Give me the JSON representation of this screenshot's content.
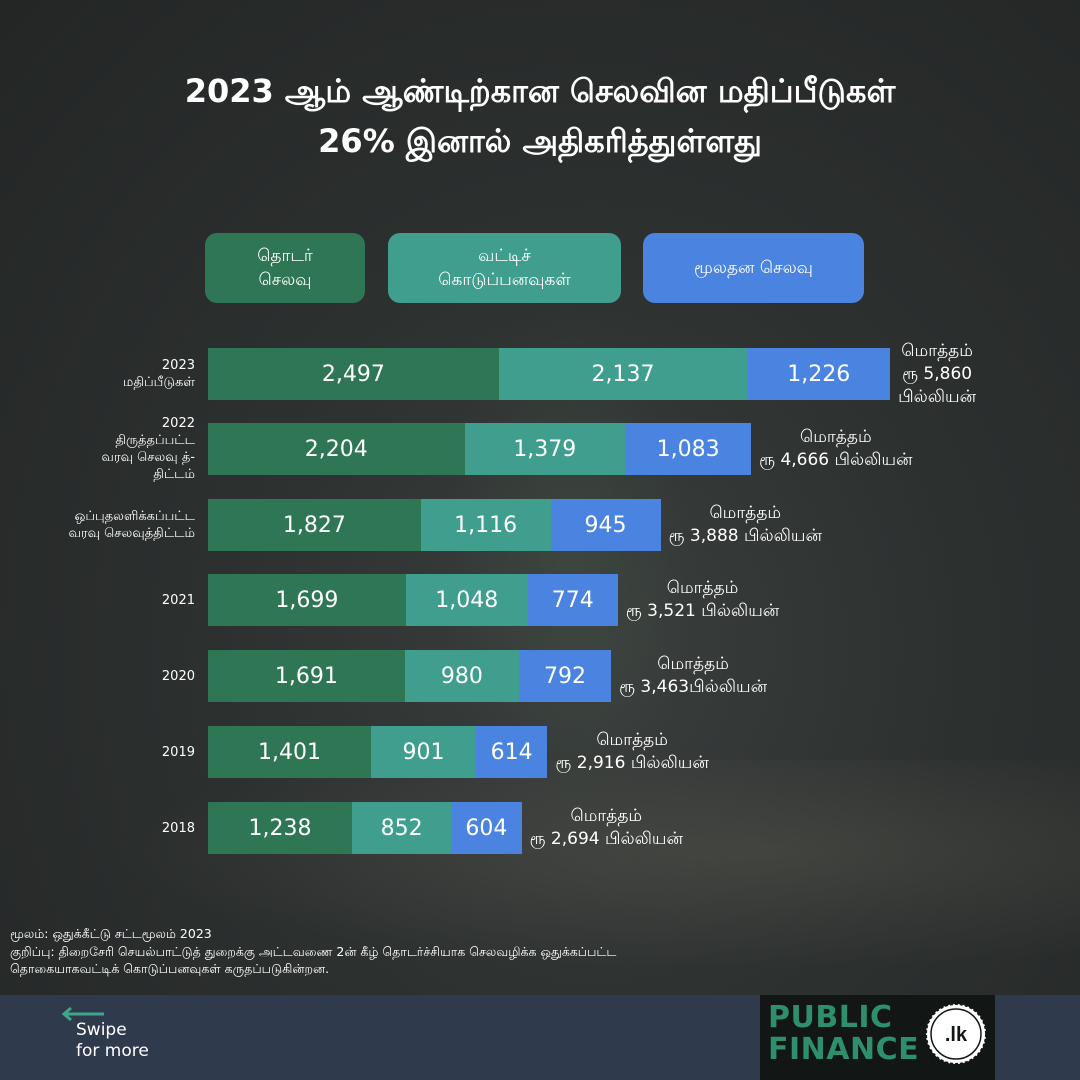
{
  "title": {
    "line1": "2023 ஆம் ஆண்டிற்கான செலவின மதிப்பீடுகள்",
    "line2": "26% இனால் அதிகரித்துள்ளது"
  },
  "legend": [
    {
      "label": "தொடர்\nசெலவு",
      "color": "#2f7654"
    },
    {
      "label": "வட்டிச்\nகொடுப்பனவுகள்",
      "color": "#3f9e8e"
    },
    {
      "label": "மூலதன செலவு",
      "color": "#4a84e0"
    }
  ],
  "colors": {
    "recurrent": "#2f7654",
    "interest": "#3f9e8e",
    "capital": "#4a84e0",
    "footer": "#2f3a4c",
    "logo": "#2e8f6c"
  },
  "chart_data": {
    "type": "bar",
    "orientation": "horizontal",
    "stacked": true,
    "categories": [
      "2023\nமதிப்பீடுகள்",
      "2022\nதிருத்தப்பட்ட\nவரவு செலவு த்-\nதிட்டம்",
      "ஒப்புதலளிக்கப்பட்ட\nவரவு செலவுத்திட்டம்",
      "2021",
      "2020",
      "2019",
      "2018"
    ],
    "series": [
      {
        "name": "தொடர் செலவு",
        "values": [
          2497,
          2204,
          1827,
          1699,
          1691,
          1401,
          1238
        ],
        "labels": [
          "2,497",
          "2,204",
          "1,827",
          "1,699",
          "1,691",
          "1,401",
          "1,238"
        ]
      },
      {
        "name": "வட்டிச் கொடுப்பனவுகள்",
        "values": [
          2137,
          1379,
          1116,
          1048,
          980,
          901,
          852
        ],
        "labels": [
          "2,137",
          "1,379",
          "1,116",
          "1,048",
          "980",
          "901",
          "852"
        ]
      },
      {
        "name": "மூலதன செலவு",
        "values": [
          1226,
          1083,
          945,
          774,
          792,
          614,
          604
        ],
        "labels": [
          "1,226",
          "1,083",
          "945",
          "774",
          "792",
          "614",
          "604"
        ]
      }
    ],
    "totals": [
      "மொத்தம்\nரூ 5,860\nபில்லியன்",
      "மொத்தம்\nரூ 4,666 பில்லியன்",
      "மொத்தம்\nரூ 3,888 பில்லியன்",
      "மொத்தம்\nரூ 3,521 பில்லியன்",
      "மொத்தம்\nரூ  3,463பில்லியன்",
      "மொத்தம்\nரூ 2,916 பில்லியன்",
      "மொத்தம்\nரூ 2,694 பில்லியன்"
    ]
  },
  "notes": {
    "source": "மூலம்: ஒதுக்கீட்டு சட்டமூலம் 2023",
    "note_line1": "குறிப்பு: திறைசேரி செயல்பாட்டுத் துறைக்கு அட்டவணை 2ன் கீழ் தொடர்ச்சியாக செலவழிக்க ஒதுக்கப்பட்ட",
    "note_line2": "தொகையாகவட்டிக் கொடுப்பனவுகள் கருதப்படுகின்றன."
  },
  "footer": {
    "swipe": "Swipe\nfor more",
    "logo": "PUBLIC\nFINANCE",
    "logo_seal": ".lk"
  }
}
